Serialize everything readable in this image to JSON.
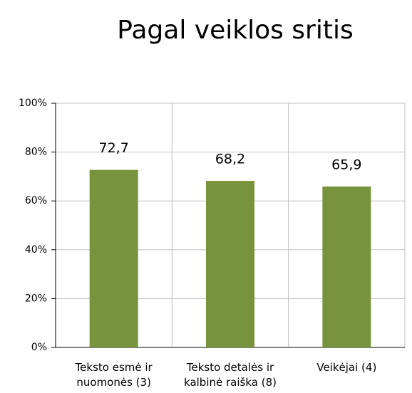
{
  "chart_data": {
    "type": "bar",
    "title": "Pagal veiklos sritis",
    "categories": [
      "Teksto esmė ir nuomonės (3)",
      "Teksto detalės ir kalbinė raiška (8)",
      "Veikėjai (4)"
    ],
    "values": [
      72.7,
      68.2,
      65.9
    ],
    "value_labels": [
      "72,7",
      "68,2",
      "65,9"
    ],
    "color": "#77933c",
    "ylim": [
      0,
      100
    ],
    "yticks": [
      {
        "value": 0,
        "label": "0%"
      },
      {
        "value": 20,
        "label": "20%"
      },
      {
        "value": 40,
        "label": "40%"
      },
      {
        "value": 60,
        "label": "60%"
      },
      {
        "value": 80,
        "label": "80%"
      },
      {
        "value": 100,
        "label": "100%"
      }
    ],
    "grid": true
  }
}
